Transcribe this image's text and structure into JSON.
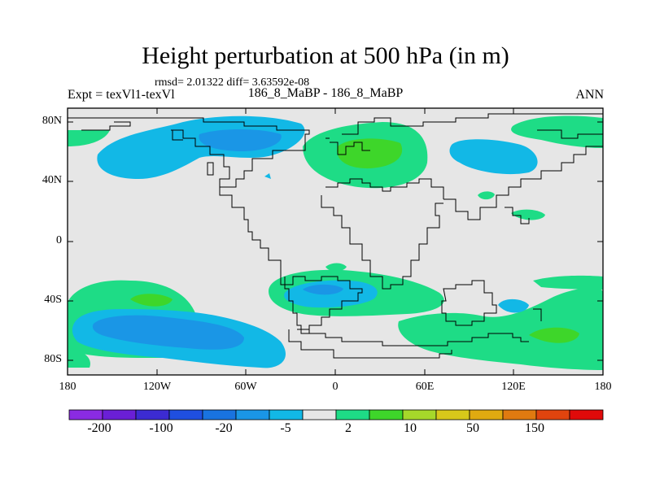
{
  "title": "Height perturbation at 500 hPa (in m)",
  "stats": "rmsd= 2.01322 diff= 3.63592e-08",
  "expt": "Expt = texVl1-texVl",
  "case": "186_8_MaBP - 186_8_MaBP",
  "season": "ANN",
  "y_ticks": [
    "80N",
    "40N",
    "0",
    "40S",
    "80S"
  ],
  "x_ticks": [
    "180",
    "120W",
    "60W",
    "0",
    "60E",
    "120E",
    "180"
  ],
  "colorbar": {
    "colors": [
      "#8a2be2",
      "#6a1fd6",
      "#3c2bd2",
      "#1f4fe0",
      "#1973e0",
      "#1a96e6",
      "#12b8e6",
      "#e6e6e6",
      "#1edc86",
      "#3ed62a",
      "#a6d82a",
      "#d8c81a",
      "#e0aa10",
      "#e07a10",
      "#e0440e",
      "#e00a0a"
    ],
    "labels": [
      "-200",
      "-100",
      "-20",
      "-5",
      "2",
      "10",
      "50",
      "150"
    ]
  },
  "legend_colors": {
    "light_blue": "#12b8e6",
    "mid_blue": "#1a96e6",
    "light_green": "#1edc86",
    "mid_green": "#3ed62a",
    "background": "#e6e6e6"
  }
}
